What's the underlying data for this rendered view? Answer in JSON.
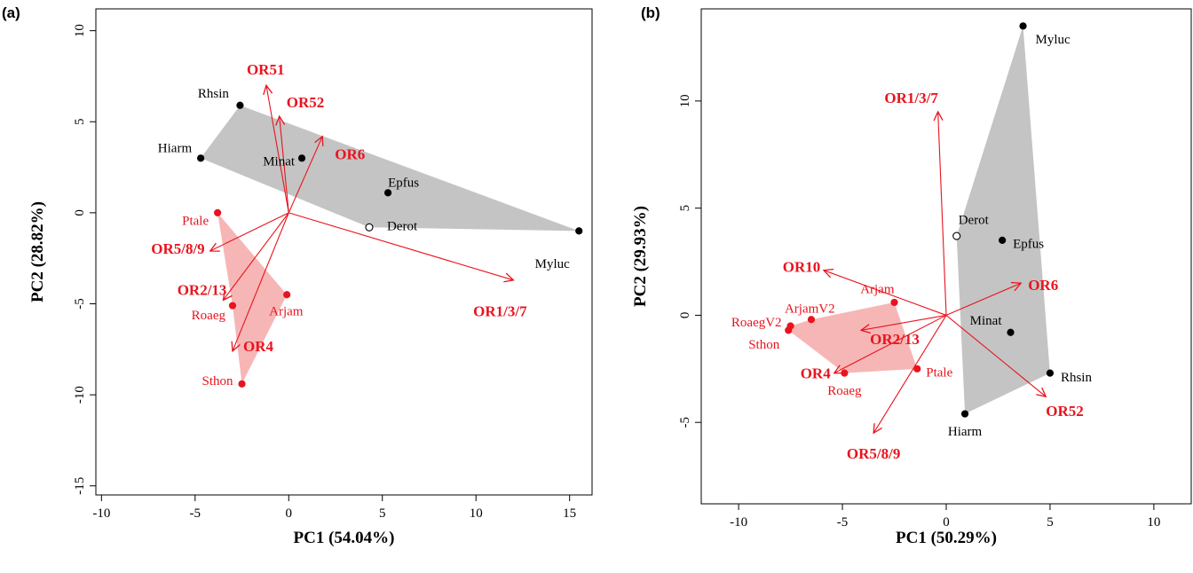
{
  "chart_data": [
    {
      "type": "scatter",
      "panel_label": "(a)",
      "xlabel": "PC1 (54.04%)",
      "ylabel": "PC2 (28.82%)",
      "xlim": [
        -10.3,
        16.2
      ],
      "ylim": [
        -15.5,
        11.2
      ],
      "xticks": [
        -10,
        -5,
        0,
        5,
        10,
        15
      ],
      "yticks": [
        -15,
        -10,
        -5,
        0,
        5,
        10
      ],
      "grey_hull": [
        "Hiarm",
        "Rhsin",
        "Myluc",
        "Derot"
      ],
      "red_hull": [
        "Ptale",
        "Arjam",
        "Sthon",
        "Roaeg"
      ],
      "points": [
        {
          "name": "Rhsin",
          "x": -2.6,
          "y": 5.9,
          "group": "black",
          "filled": true
        },
        {
          "name": "Hiarm",
          "x": -4.7,
          "y": 3.0,
          "group": "black",
          "filled": true
        },
        {
          "name": "Minat",
          "x": 0.7,
          "y": 3.0,
          "group": "black",
          "filled": true
        },
        {
          "name": "Epfus",
          "x": 5.3,
          "y": 1.1,
          "group": "black",
          "filled": true
        },
        {
          "name": "Derot",
          "x": 4.3,
          "y": -0.8,
          "group": "black",
          "filled": false
        },
        {
          "name": "Myluc",
          "x": 15.5,
          "y": -1.0,
          "group": "black",
          "filled": true
        },
        {
          "name": "Ptale",
          "x": -3.8,
          "y": 0.0,
          "group": "red",
          "filled": true
        },
        {
          "name": "Arjam",
          "x": -0.1,
          "y": -4.5,
          "group": "red",
          "filled": true
        },
        {
          "name": "Roaeg",
          "x": -3.0,
          "y": -5.1,
          "group": "red",
          "filled": true
        },
        {
          "name": "Sthon",
          "x": -2.5,
          "y": -9.4,
          "group": "red",
          "filled": true
        }
      ],
      "vectors": [
        {
          "name": "OR51",
          "x": -1.2,
          "y": 7.0
        },
        {
          "name": "OR52",
          "x": -0.5,
          "y": 5.3
        },
        {
          "name": "OR6",
          "x": 1.8,
          "y": 4.2
        },
        {
          "name": "OR5/8/9",
          "x": -4.2,
          "y": -2.1
        },
        {
          "name": "OR2/13",
          "x": -3.5,
          "y": -4.8
        },
        {
          "name": "OR4",
          "x": -3.0,
          "y": -7.6
        },
        {
          "name": "OR1/3/7",
          "x": 12.0,
          "y": -3.7
        }
      ]
    },
    {
      "type": "scatter",
      "panel_label": "(b)",
      "xlabel": "PC1 (50.29%)",
      "ylabel": "PC2 (29.93%)",
      "xlim": [
        -11.8,
        11.8
      ],
      "ylim": [
        -8.8,
        14.3
      ],
      "xticks": [
        -10,
        -5,
        0,
        5,
        10
      ],
      "yticks": [
        -5,
        0,
        5,
        10
      ],
      "grey_hull": [
        "Myluc",
        "Rhsin",
        "Hiarm",
        "Derot"
      ],
      "red_hull": [
        "ArjamV2",
        "Arjam",
        "Ptale",
        "Roaeg",
        "Sthon",
        "RoaegV2"
      ],
      "points": [
        {
          "name": "Myluc",
          "x": 3.7,
          "y": 13.5,
          "group": "black",
          "filled": true
        },
        {
          "name": "Derot",
          "x": 0.5,
          "y": 3.7,
          "group": "black",
          "filled": false
        },
        {
          "name": "Epfus",
          "x": 2.7,
          "y": 3.5,
          "group": "black",
          "filled": true
        },
        {
          "name": "Minat",
          "x": 3.1,
          "y": -0.8,
          "group": "black",
          "filled": true
        },
        {
          "name": "Rhsin",
          "x": 5.0,
          "y": -2.7,
          "group": "black",
          "filled": true
        },
        {
          "name": "Hiarm",
          "x": 0.9,
          "y": -4.6,
          "group": "black",
          "filled": true
        },
        {
          "name": "Arjam",
          "x": -2.5,
          "y": 0.6,
          "group": "red",
          "filled": true
        },
        {
          "name": "ArjamV2",
          "x": -6.5,
          "y": -0.2,
          "group": "red",
          "filled": true
        },
        {
          "name": "RoaegV2",
          "x": -7.5,
          "y": -0.5,
          "group": "red",
          "filled": true
        },
        {
          "name": "Sthon",
          "x": -7.6,
          "y": -0.7,
          "group": "red",
          "filled": true
        },
        {
          "name": "Ptale",
          "x": -1.4,
          "y": -2.5,
          "group": "red",
          "filled": true
        },
        {
          "name": "Roaeg",
          "x": -4.9,
          "y": -2.7,
          "group": "red",
          "filled": true
        }
      ],
      "vectors": [
        {
          "name": "OR1/3/7",
          "x": -0.4,
          "y": 9.5
        },
        {
          "name": "OR10",
          "x": -5.9,
          "y": 2.1
        },
        {
          "name": "OR6",
          "x": 3.6,
          "y": 1.5
        },
        {
          "name": "OR2/13",
          "x": -4.1,
          "y": -0.7
        },
        {
          "name": "OR4",
          "x": -5.4,
          "y": -2.7
        },
        {
          "name": "OR5/8/9",
          "x": -3.5,
          "y": -5.5
        },
        {
          "name": "OR52",
          "x": 4.8,
          "y": -3.8
        }
      ]
    }
  ]
}
